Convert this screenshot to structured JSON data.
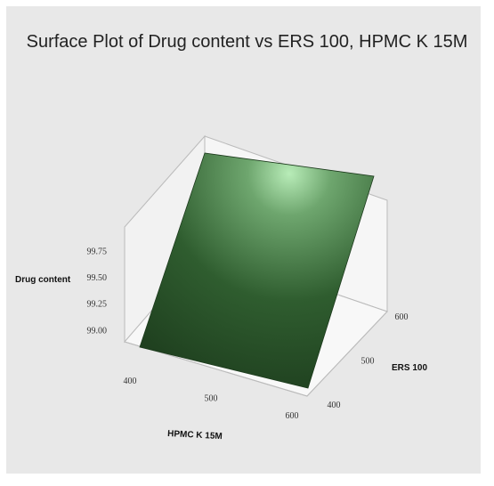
{
  "chart_data": {
    "type": "surface",
    "title": "Surface Plot of Drug content vs ERS 100, HPMC K 15M",
    "zlabel": "Drug content",
    "xlabel": "HPMC K 15M",
    "ylabel": "ERS 100",
    "x_ticks": [
      "400",
      "500",
      "600"
    ],
    "y_ticks": [
      "400",
      "500",
      "600"
    ],
    "z_ticks": [
      "99.00",
      "99.25",
      "99.50",
      "99.75"
    ],
    "xlim": [
      400,
      600
    ],
    "ylim": [
      400,
      600
    ],
    "zlim": [
      98.85,
      99.95
    ],
    "surface": {
      "x": [
        400,
        600
      ],
      "y": [
        400,
        600
      ],
      "z": [
        [
          98.95,
          99.9
        ],
        [
          98.95,
          99.9
        ]
      ]
    },
    "surface_color": "#2d5a2d",
    "highlight_color": "#b8ecb8",
    "background_color": "#e8e8e8"
  }
}
